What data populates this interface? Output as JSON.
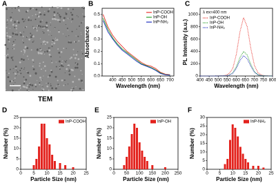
{
  "chart_data": [
    {
      "type": "image",
      "label": "A",
      "caption": "TEM"
    },
    {
      "type": "line",
      "label": "B",
      "xlabel": "Wavelength (nm)",
      "ylabel": "Absorbance",
      "xlim": [
        345,
        720
      ],
      "ylim": [
        0,
        0.55
      ],
      "xticks": [
        400,
        450,
        500,
        550,
        600,
        650,
        700
      ],
      "yticks": [
        {
          "value": 0,
          "label": "0.0"
        },
        0.1,
        0.2,
        0.3,
        0.4,
        0.5
      ],
      "x": [
        350,
        375,
        400,
        425,
        450,
        475,
        500,
        525,
        550,
        575,
        600,
        625,
        650,
        675,
        700
      ],
      "series": [
        {
          "name": "InP-COOH",
          "color": "#e8332d",
          "values": [
            0.5,
            0.4,
            0.33,
            0.28,
            0.24,
            0.2,
            0.17,
            0.14,
            0.11,
            0.09,
            0.08,
            0.06,
            0.03,
            0.015,
            0.01
          ]
        },
        {
          "name": "InP-OH",
          "color": "#2ca02c",
          "values": [
            0.47,
            0.38,
            0.31,
            0.26,
            0.22,
            0.19,
            0.16,
            0.13,
            0.1,
            0.085,
            0.07,
            0.05,
            0.025,
            0.012,
            0.008
          ]
        },
        {
          "name": "InP-NH₂",
          "color": "#1f2fbf",
          "values": [
            0.45,
            0.36,
            0.3,
            0.25,
            0.21,
            0.18,
            0.15,
            0.12,
            0.095,
            0.08,
            0.065,
            0.045,
            0.02,
            0.01,
            0.006
          ]
        }
      ],
      "legend": "upper right",
      "line_style": "solid"
    },
    {
      "type": "line",
      "label": "C",
      "xlabel": "Wavelength (nm)",
      "ylabel": "PL Intensity (a.u.)",
      "annotation": "λ ex=400 nm",
      "xlim": [
        400,
        800
      ],
      "ylim": [
        0,
        1100
      ],
      "xticks": [
        400,
        450,
        500,
        550,
        600,
        650,
        700,
        750,
        800
      ],
      "yticks": [
        0,
        200,
        400,
        600,
        800,
        1000
      ],
      "x": [
        400,
        420,
        440,
        460,
        480,
        500,
        520,
        540,
        560,
        580,
        600,
        620,
        640,
        660,
        680,
        700,
        720,
        740,
        760,
        780,
        800
      ],
      "series": [
        {
          "name": "InP-COOH",
          "color": "#e8332d",
          "values": [
            0,
            0,
            0,
            0,
            0,
            2,
            5,
            10,
            40,
            120,
            350,
            720,
            950,
            800,
            450,
            170,
            50,
            15,
            5,
            2,
            0
          ]
        },
        {
          "name": "InP-OH",
          "color": "#2ca02c",
          "values": [
            0,
            0,
            0,
            0,
            0,
            1,
            2,
            5,
            17,
            50,
            150,
            300,
            400,
            340,
            190,
            70,
            20,
            6,
            2,
            1,
            0
          ]
        },
        {
          "name": "InP-NH₂",
          "color": "#1f2fbf",
          "values": [
            0,
            0,
            0,
            0,
            0,
            1,
            2,
            4,
            14,
            42,
            125,
            250,
            330,
            280,
            160,
            60,
            18,
            5,
            2,
            1,
            0
          ]
        }
      ],
      "legend": "upper left",
      "line_style": "dotted"
    },
    {
      "type": "bar",
      "label": "D",
      "xlabel": "Particle Size (nm)",
      "ylabel": "Number (%)",
      "xlim": [
        0,
        25
      ],
      "ylim": [
        0,
        25
      ],
      "xticks": [
        0,
        5,
        10,
        15,
        20,
        25
      ],
      "yticks": [
        0,
        5,
        10,
        15,
        20,
        25
      ],
      "series": [
        {
          "name": "InP-COOH",
          "color": "#e3211c",
          "x": [
            5,
            6,
            7,
            8,
            9,
            10,
            11,
            12,
            13,
            15,
            17,
            20
          ],
          "values": [
            2,
            5,
            11,
            22,
            22,
            15,
            12,
            7,
            4,
            3,
            2,
            1
          ]
        }
      ],
      "legend": "upper right"
    },
    {
      "type": "bar",
      "label": "E",
      "xlabel": "Particle Size (nm)",
      "ylabel": "Number (%)",
      "xlim": [
        0,
        250
      ],
      "ylim": [
        0,
        25
      ],
      "xticks": [
        0,
        50,
        100,
        150,
        200,
        250
      ],
      "yticks": [
        0,
        5,
        10,
        15,
        20,
        25
      ],
      "series": [
        {
          "name": "InP-OH",
          "color": "#e3211c",
          "x": [
            40,
            50,
            60,
            70,
            80,
            90,
            100,
            110,
            120,
            130,
            150,
            200
          ],
          "values": [
            2,
            6,
            11,
            17,
            22,
            20,
            13,
            9,
            6,
            4,
            2,
            1
          ]
        }
      ],
      "legend": "upper right"
    },
    {
      "type": "bar",
      "label": "F",
      "xlabel": "Particle Size (nm)",
      "ylabel": "Number (%)",
      "xlim": [
        0,
        25
      ],
      "ylim": [
        0,
        30
      ],
      "xticks": [
        0,
        5,
        10,
        15,
        20,
        25
      ],
      "yticks": [
        0,
        5,
        10,
        15,
        20,
        25,
        30
      ],
      "series": [
        {
          "name": "InP-NH₂",
          "color": "#e3211c",
          "x": [
            7,
            8,
            9,
            10,
            11,
            12,
            13,
            14,
            15,
            16,
            18,
            20,
            22
          ],
          "values": [
            3,
            6,
            17,
            26,
            24,
            19,
            13,
            9,
            6,
            4,
            2,
            2,
            1
          ]
        }
      ],
      "legend": "upper right"
    }
  ]
}
